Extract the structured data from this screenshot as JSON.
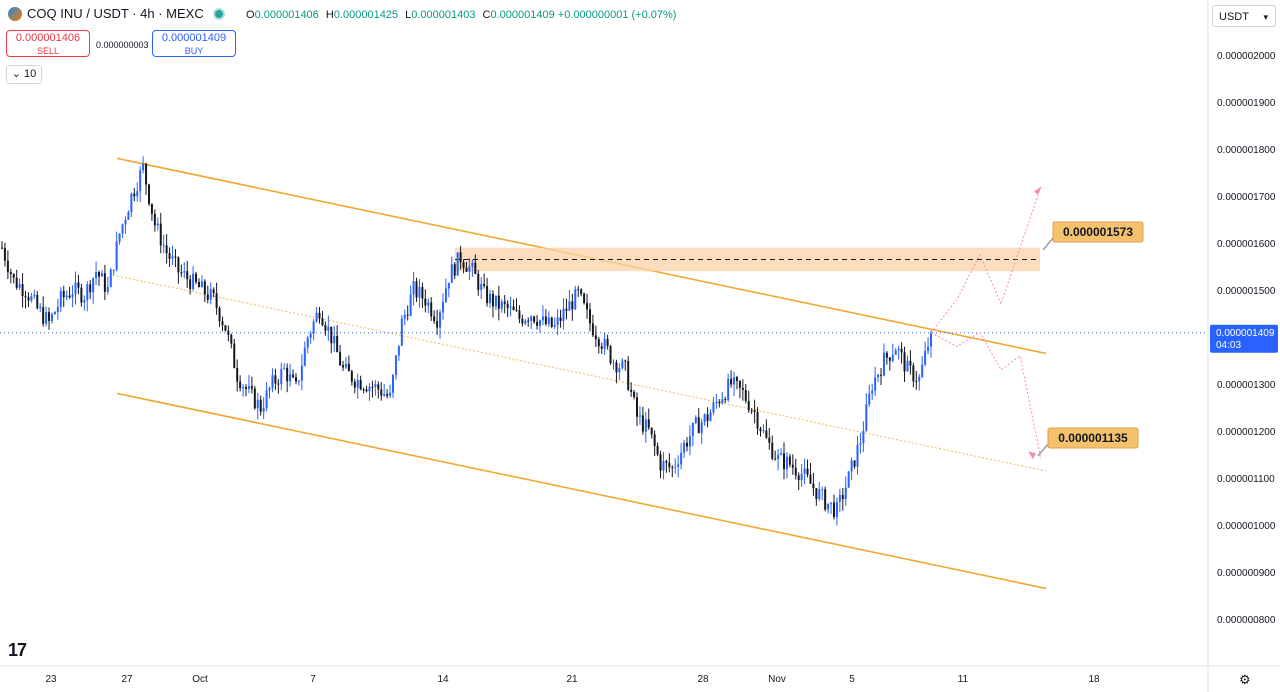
{
  "header": {
    "symbol": "COQ INU / USDT · 4h · MEXC",
    "open_key": "O",
    "open": "0.000001406",
    "high_key": "H",
    "high": "0.000001425",
    "low_key": "L",
    "low": "0.000001403",
    "close_key": "C",
    "close": "0.000001409",
    "change": "+0.000000001 (+0.07%)"
  },
  "trade": {
    "sell_price": "0.000001406",
    "sell_label": "SELL",
    "spread": "0.000000003",
    "buy_price": "0.000001409",
    "buy_label": "BUY"
  },
  "interval_control": "10",
  "currency": "USDT",
  "logo": "17",
  "colors": {
    "up": "#2962ff",
    "down": "#131722",
    "channel": "#f0a830",
    "zone": "#fbd3a8",
    "forecast": "#f48fb1",
    "price_line": "#2962ff"
  },
  "chart_data": {
    "type": "candlestick",
    "timeframe": "4h",
    "y_ticks": [
      "0.000002000",
      "0.000001900",
      "0.000001800",
      "0.000001700",
      "0.000001600",
      "0.000001500",
      "0.000001300",
      "0.000001200",
      "0.000001100",
      "0.000001000",
      "0.000000900",
      "0.000000800"
    ],
    "ylim": [
      7.8e-07,
      2.03e-06
    ],
    "x_ticks": [
      "23",
      "27",
      "Oct",
      "7",
      "14",
      "21",
      "28",
      "Nov",
      "5",
      "11",
      "18"
    ],
    "current_price": "0.000001409",
    "countdown": "04:03",
    "callouts": [
      "0.000001573",
      "0.000001135"
    ],
    "resistance_zone": [
      1.54e-06,
      1.59e-06
    ],
    "resistance_level": 1.565e-06,
    "channel": {
      "upper": [
        [
          1.78e-06,
          "27"
        ],
        [
          1.365e-06,
          "after 11"
        ]
      ],
      "middle": [
        [
          1.53e-06,
          "27"
        ],
        [
          1.115e-06,
          "after 11"
        ]
      ],
      "lower": [
        [
          1.28e-06,
          "27"
        ],
        [
          8.65e-07,
          "after 11"
        ]
      ]
    },
    "price_path": [
      1.59e-06,
      1.52e-06,
      1.5e-06,
      1.46e-06,
      1.43e-06,
      1.48e-06,
      1.5e-06,
      1.49e-06,
      1.54e-06,
      1.5e-06,
      1.62e-06,
      1.7e-06,
      1.76e-06,
      1.64e-06,
      1.58e-06,
      1.54e-06,
      1.52e-06,
      1.5e-06,
      1.48e-06,
      1.42e-06,
      1.32e-06,
      1.28e-06,
      1.25e-06,
      1.3e-06,
      1.33e-06,
      1.29e-06,
      1.4e-06,
      1.46e-06,
      1.4e-06,
      1.33e-06,
      1.31e-06,
      1.3e-06,
      1.29e-06,
      1.27e-06,
      1.43e-06,
      1.5e-06,
      1.48e-06,
      1.44e-06,
      1.53e-06,
      1.57e-06,
      1.54e-06,
      1.49e-06,
      1.47e-06,
      1.46e-06,
      1.44e-06,
      1.45e-06,
      1.43e-06,
      1.42e-06,
      1.46e-06,
      1.49e-06,
      1.43e-06,
      1.39e-06,
      1.35e-06,
      1.33e-06,
      1.23e-06,
      1.2e-06,
      1.13e-06,
      1.12e-06,
      1.17e-06,
      1.21e-06,
      1.23e-06,
      1.27e-06,
      1.3e-06,
      1.28e-06,
      1.24e-06,
      1.18e-06,
      1.14e-06,
      1.13e-06,
      1.11e-06,
      1.08e-06,
      1.05e-06,
      1.03e-06,
      1.1e-06,
      1.18e-06,
      1.3e-06,
      1.35e-06,
      1.38e-06,
      1.33e-06,
      1.31e-06,
      1.409e-06
    ],
    "forecast_up": [
      1.409e-06,
      1.48e-06,
      1.575e-06,
      1.47e-06,
      1.59e-06,
      1.72e-06
    ],
    "forecast_down": [
      1.409e-06,
      1.38e-06,
      1.41e-06,
      1.33e-06,
      1.36e-06,
      1.14e-06
    ]
  }
}
